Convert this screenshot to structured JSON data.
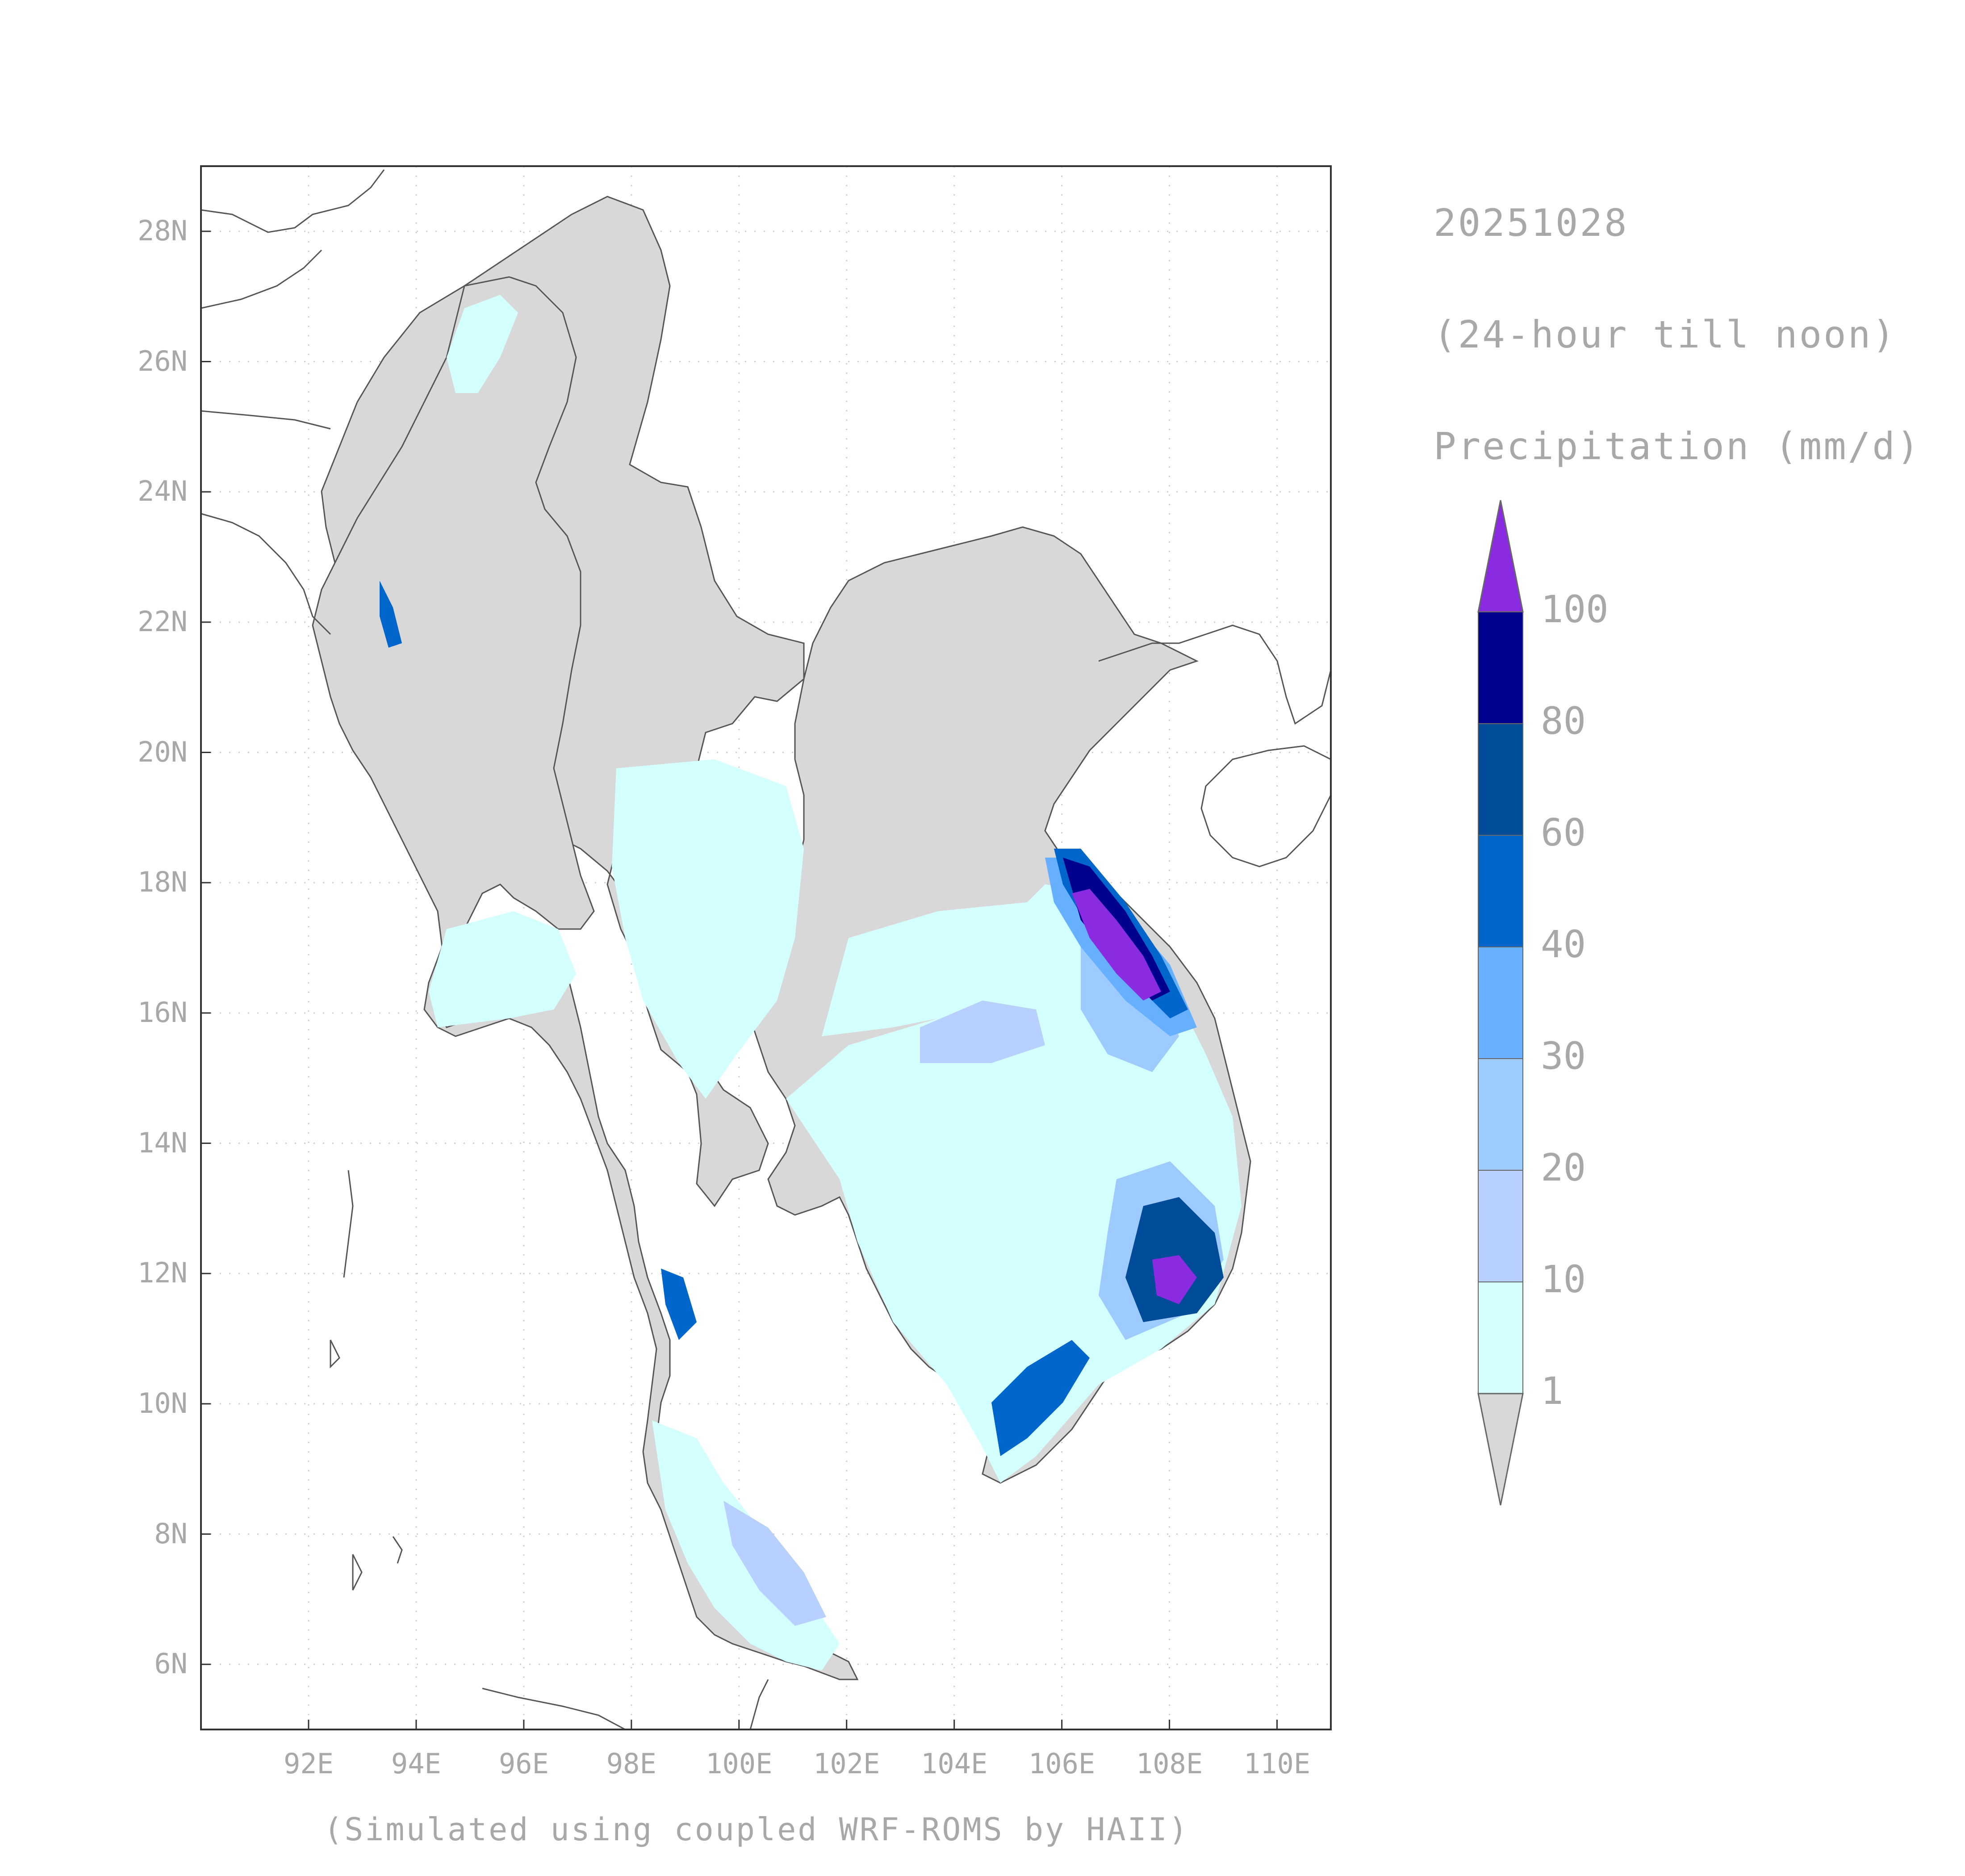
{
  "header": {
    "date": "20251028",
    "period": "(24-hour till noon)",
    "variable": "Precipitation (mm/d)"
  },
  "footer": {
    "credit": "(Simulated using coupled WRF-ROMS by HAII)"
  },
  "axes": {
    "lon_ticks": [
      "92E",
      "94E",
      "96E",
      "98E",
      "100E",
      "102E",
      "104E",
      "106E",
      "108E",
      "110E"
    ],
    "lat_ticks": [
      "28N",
      "26N",
      "24N",
      "22N",
      "20N",
      "18N",
      "16N",
      "14N",
      "12N",
      "10N",
      "8N",
      "6N"
    ],
    "lon_range": [
      90.0,
      111.0
    ],
    "lat_range": [
      5.0,
      29.0
    ],
    "grid": "dotted"
  },
  "colorbar": {
    "levels": [
      "1",
      "10",
      "20",
      "30",
      "40",
      "60",
      "80",
      "100"
    ],
    "colors": [
      "#d8d8d8",
      "#d4ffff",
      "#b8d0ff",
      "#9ecbff",
      "#66b0ff",
      "#0066cc",
      "#004c99",
      "#00008f",
      "#8a2be2"
    ],
    "below_color": "#d8d8d8",
    "above_color": "#8a2be2"
  },
  "colors": {
    "land_no_rain": "#d8d8d8",
    "coastline": "#555555",
    "frame": "#333333"
  }
}
